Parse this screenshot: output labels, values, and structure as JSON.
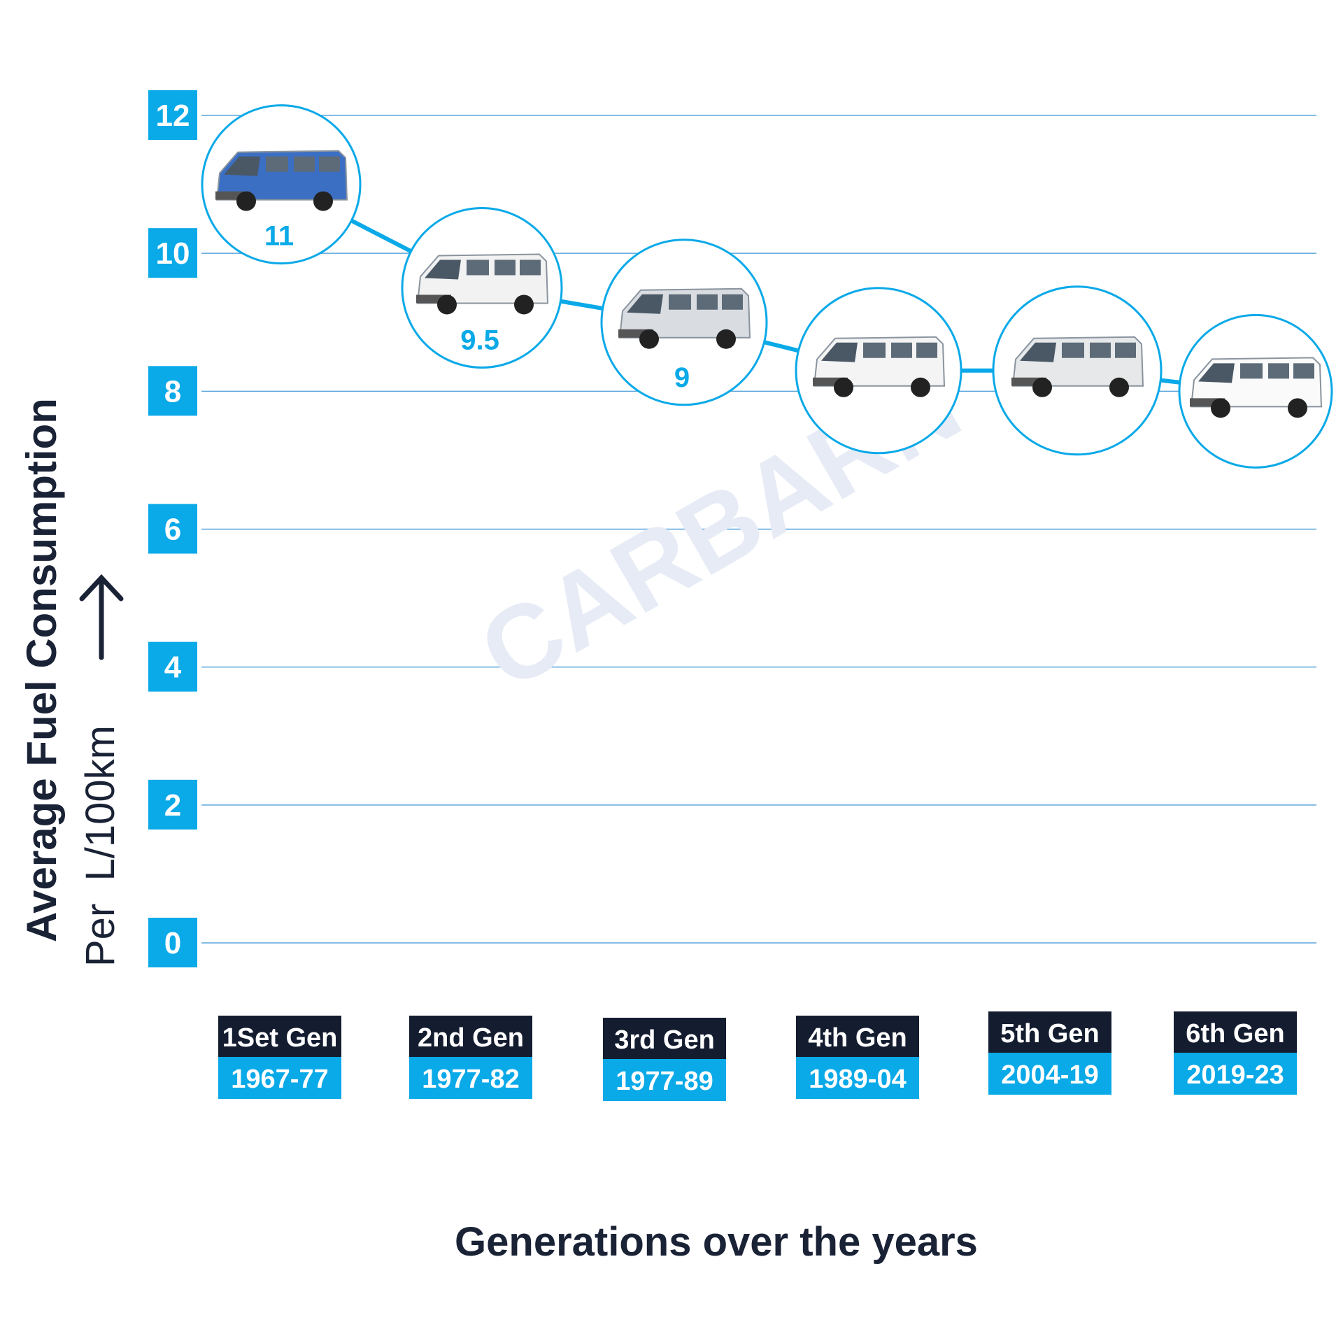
{
  "chart_data": {
    "type": "line",
    "title": "",
    "xlabel": "Generations over the years",
    "ylabel": "Average Fuel Consumption",
    "ylabel_sub": "Per  L/100km",
    "ylim": [
      0,
      12
    ],
    "yticks": [
      "0",
      "2",
      "4",
      "6",
      "8",
      "10",
      "12"
    ],
    "grid": true,
    "categories": [
      {
        "gen": "1Set Gen",
        "years": "1967-77"
      },
      {
        "gen": "2nd Gen",
        "years": "1977-82"
      },
      {
        "gen": "3rd Gen",
        "years": "1977-89"
      },
      {
        "gen": "4th Gen",
        "years": "1989-04"
      },
      {
        "gen": "5th Gen",
        "years": "2004-19"
      },
      {
        "gen": "6th Gen",
        "years": "2019-23"
      }
    ],
    "values": [
      11,
      9.5,
      9,
      8.3,
      8.3,
      8
    ],
    "data_labels": [
      "11",
      "9.5",
      "9",
      "",
      "",
      ""
    ],
    "marker": "van photo in circle"
  },
  "watermark": "CARBARN",
  "colors": {
    "accent": "#0aa9e8",
    "dark": "#141c30",
    "grid": "#5aa6dc",
    "watermark": "#e6ebf5"
  }
}
